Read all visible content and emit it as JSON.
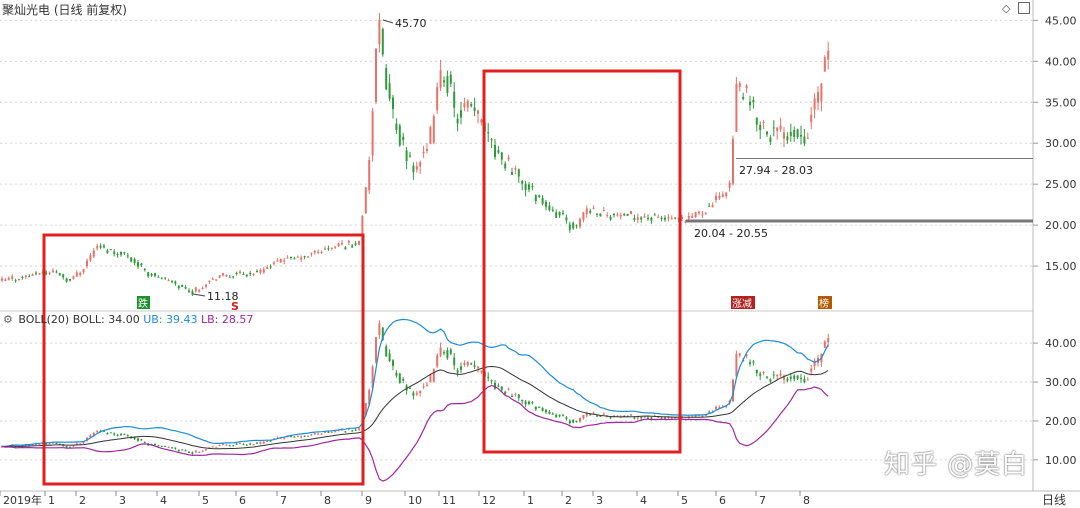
{
  "title": "聚灿光电 (日线 前复权)",
  "period_label": "日线",
  "watermark": "知乎 @莫白",
  "boll_legend": {
    "gear_icon": "gear-icon",
    "name": "BOLL(20)",
    "boll": "BOLL: 34.00",
    "ub": "UB: 39.43",
    "lb": "LB: 28.57"
  },
  "colors": {
    "up": "#e8716a",
    "down": "#2e9a3a",
    "ub_line": "#1f8bd8",
    "mid_line": "#333333",
    "lb_line": "#a0279f",
    "highlight_box": "#e02020",
    "tag_green": "#1d8f2e",
    "tag_red": "#b22222",
    "tag_orange": "#b35a00"
  },
  "chart_data": [
    {
      "type": "candlestick",
      "panel": "price",
      "y_ticks": [
        15.0,
        20.0,
        25.0,
        30.0,
        35.0,
        40.0,
        45.0
      ],
      "ylim": [
        10,
        47
      ],
      "x_axis_labels": [
        "2019年",
        "1",
        "2",
        "3",
        "4",
        "5",
        "6",
        "7",
        "8",
        "9",
        "10",
        "11",
        "12",
        "1",
        "2",
        "3",
        "4",
        "5",
        "6",
        "7",
        "8"
      ],
      "annotations": {
        "high": "45.70",
        "low": "11.18",
        "zone_upper": "27.94 - 28.03",
        "zone_lower": "20.04 - 20.55"
      },
      "tags": [
        "跌",
        "S",
        "涨减",
        "榜"
      ]
    },
    {
      "type": "line",
      "panel": "boll",
      "y_ticks": [
        10.0,
        20.0,
        30.0,
        40.0
      ],
      "ylim": [
        2,
        48
      ],
      "series": [
        {
          "name": "UB"
        },
        {
          "name": "BOLL"
        },
        {
          "name": "LB"
        }
      ]
    }
  ]
}
